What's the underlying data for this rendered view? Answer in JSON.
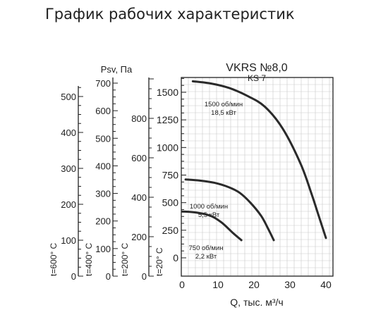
{
  "page": {
    "title": "График рабочих характеристик"
  },
  "chart_data": {
    "type": "line",
    "model": "VKRS №8,0",
    "model_sub": "KS 7",
    "xlabel": "Q, тыс. м³/ч",
    "ylabel": "Psv, Па",
    "xlim": [
      0,
      40
    ],
    "ylim": [
      0,
      1650
    ],
    "grid": true,
    "x_ticks": [
      "0",
      "10",
      "20",
      "30",
      "40"
    ],
    "y_ticks": [
      "0",
      "250",
      "500",
      "750",
      "1000",
      "1250",
      "1500"
    ],
    "temperature_scales": [
      {
        "label": "t=600° C",
        "max": 550,
        "ticks": [
          "0",
          "100",
          "200",
          "300",
          "400",
          "500"
        ]
      },
      {
        "label": "t=400° C",
        "max": 700,
        "ticks": [
          "0",
          "100",
          "200",
          "300",
          "400",
          "500",
          "600",
          "700"
        ]
      },
      {
        "label": "t=200° C",
        "max": 950,
        "ticks": [
          "0",
          "200",
          "400",
          "600",
          "800"
        ]
      },
      {
        "label": "t=20° C",
        "max": 1650,
        "ticks": [
          "0",
          "250",
          "500",
          "750",
          "1000",
          "1250",
          "1500"
        ]
      }
    ],
    "series": [
      {
        "name": "1500 об/мин",
        "power": "18,5 кВт",
        "x": [
          3,
          8,
          13,
          18,
          23,
          28,
          33,
          36,
          38,
          40
        ],
        "y": [
          1600,
          1580,
          1540,
          1470,
          1370,
          1170,
          850,
          580,
          380,
          180
        ]
      },
      {
        "name": "1000 об/мин",
        "power": "5,5 кВт",
        "x": [
          1,
          5,
          9,
          13,
          16,
          19,
          22,
          24,
          25.5
        ],
        "y": [
          710,
          700,
          680,
          640,
          590,
          500,
          380,
          260,
          160
        ]
      },
      {
        "name": "750 об/мин",
        "power": "2,2 кВт",
        "x": [
          0,
          4,
          8,
          11,
          14,
          16.5
        ],
        "y": [
          420,
          410,
          380,
          320,
          230,
          160
        ]
      }
    ]
  }
}
